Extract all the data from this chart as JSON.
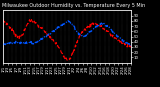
{
  "title": "Milwaukee Outdoor Humidity vs. Temperature Every 5 Min",
  "bg_color": "#000000",
  "plot_bg": "#000000",
  "grid_color": "#555555",
  "temp_color": "#ff0000",
  "hum_color": "#0055ff",
  "temp_linestyle": "--",
  "hum_linestyle": "-.",
  "temp_linewidth": 0.8,
  "hum_linewidth": 0.9,
  "ylim_left": [
    0,
    100
  ],
  "ylim_right": [
    0,
    100
  ],
  "right_yticks": [
    10,
    20,
    30,
    40,
    50,
    60,
    70,
    80,
    90
  ],
  "title_fontsize": 3.5,
  "tick_fontsize": 2.8,
  "temp_data": [
    80,
    78,
    75,
    72,
    68,
    65,
    60,
    55,
    52,
    50,
    48,
    50,
    55,
    60,
    68,
    75,
    80,
    82,
    80,
    78,
    75,
    72,
    70,
    68,
    65,
    62,
    58,
    55,
    52,
    48,
    45,
    42,
    38,
    35,
    30,
    25,
    20,
    15,
    10,
    8,
    5,
    8,
    12,
    18,
    25,
    35,
    42,
    50,
    55,
    60,
    62,
    65,
    68,
    70,
    72,
    74,
    76,
    75,
    73,
    72,
    70,
    68,
    65,
    63,
    60,
    58,
    55,
    52,
    50,
    48,
    45,
    43,
    40,
    38,
    36,
    35,
    34,
    33,
    32,
    30
  ],
  "hum_data": [
    35,
    35,
    36,
    37,
    38,
    38,
    38,
    38,
    38,
    38,
    38,
    38,
    38,
    38,
    38,
    38,
    38,
    38,
    38,
    38,
    38,
    40,
    42,
    44,
    46,
    48,
    50,
    52,
    54,
    56,
    58,
    60,
    62,
    65,
    68,
    70,
    72,
    74,
    76,
    78,
    80,
    78,
    75,
    72,
    68,
    62,
    58,
    55,
    52,
    50,
    50,
    52,
    55,
    58,
    60,
    62,
    65,
    68,
    70,
    72,
    74,
    75,
    74,
    72,
    70,
    68,
    65,
    62,
    58,
    55,
    52,
    50,
    48,
    45,
    42,
    40,
    38,
    36,
    35,
    33
  ],
  "x_tick_labels": [
    "1/1",
    "1/3",
    "1/5",
    "1/7",
    "1/9",
    "1/11",
    "1/13",
    "1/15",
    "1/17",
    "1/19",
    "1/21",
    "1/23",
    "1/25",
    "1/27",
    "1/29",
    "1/31",
    "2/2",
    "2/4",
    "2/6",
    "2/8",
    "2/10",
    "2/12",
    "2/14",
    "2/16",
    "2/18",
    "2/20",
    "2/22",
    "2/24",
    "2/26",
    "2/28"
  ]
}
